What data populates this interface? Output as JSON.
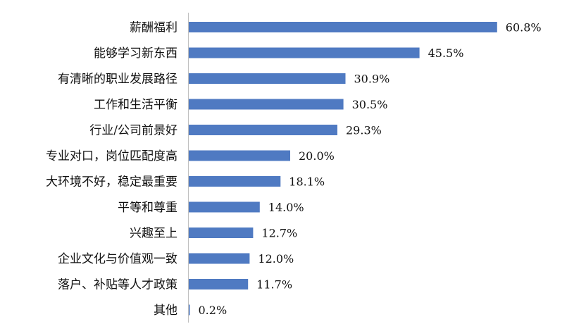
{
  "chart_data": {
    "type": "bar",
    "orientation": "horizontal",
    "categories": [
      "薪酬福利",
      "能够学习新东西",
      "有清晰的职业发展路径",
      "工作和生活平衡",
      "行业/公司前景好",
      "专业对口，岗位匹配度高",
      "大环境不好，稳定最重要",
      "平等和尊重",
      "兴趣至上",
      "企业文化与价值观一致",
      "落户、补贴等人才政策",
      "其他"
    ],
    "values": [
      60.8,
      45.5,
      30.9,
      30.5,
      29.3,
      20.0,
      18.1,
      14.0,
      12.7,
      12.0,
      11.7,
      0.2
    ],
    "value_labels": [
      "60.8%",
      "45.5%",
      "30.9%",
      "30.5%",
      "29.3%",
      "20.0%",
      "18.1%",
      "14.0%",
      "12.7%",
      "12.0%",
      "11.7%",
      "0.2%"
    ],
    "xlim": [
      0,
      70
    ],
    "bar_color": "#4f7ac2",
    "axis_color": "#bfbfbf",
    "grid": false,
    "legend": "none"
  }
}
